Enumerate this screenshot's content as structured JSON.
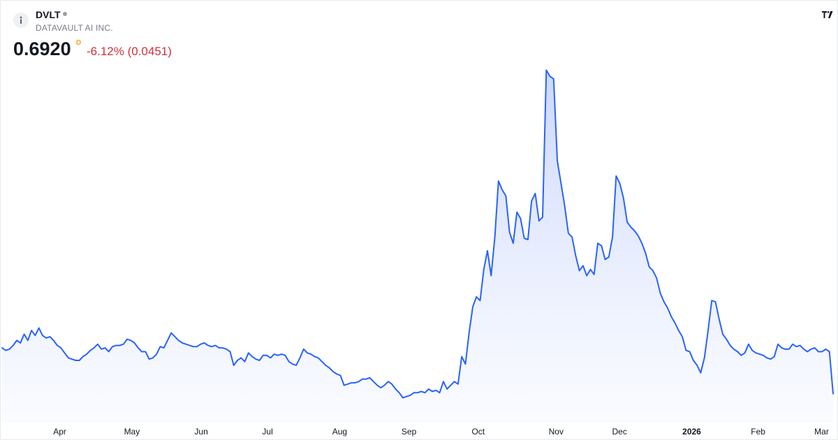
{
  "header": {
    "symbol": "DVLT",
    "company": "DATAVAULT AI INC.",
    "price": "0.6920",
    "interval": "D",
    "change": "-6.12% (0.0451)",
    "logo_icon": "info-icon",
    "brand_icon": "tradingview-logo-icon"
  },
  "colors": {
    "line": "#2962ff",
    "fill_top": "#c9d6fb",
    "fill_bottom": "#f7f9ff",
    "change": "#d0303d",
    "interval": "#f5a623"
  },
  "chart_data": {
    "type": "area",
    "ylim": [
      0.5,
      3.5
    ],
    "xlim": [
      0,
      288
    ],
    "grid": false,
    "x_ticks": [
      {
        "label": "Apr",
        "x": 20,
        "bold": false
      },
      {
        "label": "May",
        "x": 45,
        "bold": false
      },
      {
        "label": "Jun",
        "x": 69,
        "bold": false
      },
      {
        "label": "Jul",
        "x": 92,
        "bold": false
      },
      {
        "label": "Aug",
        "x": 117,
        "bold": false
      },
      {
        "label": "Sep",
        "x": 141,
        "bold": false
      },
      {
        "label": "Oct",
        "x": 165,
        "bold": false
      },
      {
        "label": "Nov",
        "x": 192,
        "bold": false
      },
      {
        "label": "Dec",
        "x": 214,
        "bold": false
      },
      {
        "label": "2026",
        "x": 239,
        "bold": true
      },
      {
        "label": "Feb",
        "x": 262,
        "bold": false
      },
      {
        "label": "Mar",
        "x": 284,
        "bold": false
      }
    ],
    "values": [
      1.06,
      1.04,
      1.05,
      1.08,
      1.12,
      1.1,
      1.17,
      1.12,
      1.2,
      1.16,
      1.22,
      1.16,
      1.14,
      1.15,
      1.12,
      1.08,
      1.06,
      1.02,
      0.98,
      0.97,
      0.96,
      0.96,
      0.99,
      1.01,
      1.04,
      1.06,
      1.09,
      1.05,
      1.06,
      1.03,
      1.07,
      1.08,
      1.08,
      1.09,
      1.13,
      1.12,
      1.1,
      1.06,
      1.03,
      1.03,
      0.97,
      0.98,
      1.01,
      1.07,
      1.06,
      1.12,
      1.18,
      1.15,
      1.12,
      1.1,
      1.09,
      1.08,
      1.07,
      1.07,
      1.09,
      1.1,
      1.08,
      1.07,
      1.08,
      1.06,
      1.06,
      1.05,
      1.03,
      0.92,
      0.96,
      0.98,
      0.95,
      1.02,
      0.99,
      0.97,
      0.96,
      1.0,
      1.0,
      0.98,
      1.01,
      1.0,
      1.01,
      1.0,
      0.95,
      0.93,
      0.92,
      0.98,
      1.05,
      1.02,
      1.01,
      0.99,
      0.98,
      0.95,
      0.92,
      0.9,
      0.87,
      0.85,
      0.84,
      0.76,
      0.77,
      0.78,
      0.78,
      0.79,
      0.81,
      0.81,
      0.82,
      0.79,
      0.76,
      0.74,
      0.76,
      0.79,
      0.77,
      0.73,
      0.7,
      0.66,
      0.67,
      0.68,
      0.7,
      0.7,
      0.71,
      0.7,
      0.73,
      0.71,
      0.72,
      0.7,
      0.79,
      0.73,
      0.76,
      0.79,
      0.77,
      0.99,
      0.93,
      1.18,
      1.39,
      1.47,
      1.44,
      1.69,
      1.84,
      1.64,
      1.95,
      2.4,
      2.33,
      2.28,
      1.99,
      1.9,
      2.15,
      2.1,
      1.94,
      1.93,
      2.24,
      2.3,
      2.08,
      2.11,
      3.29,
      3.24,
      3.22,
      2.56,
      2.38,
      2.2,
      1.98,
      1.95,
      1.8,
      1.68,
      1.72,
      1.64,
      1.69,
      1.65,
      1.9,
      1.88,
      1.77,
      1.79,
      1.95,
      2.44,
      2.38,
      2.26,
      2.07,
      2.03,
      2.0,
      1.96,
      1.9,
      1.82,
      1.71,
      1.68,
      1.62,
      1.5,
      1.43,
      1.38,
      1.31,
      1.26,
      1.2,
      1.15,
      1.04,
      1.03,
      0.96,
      0.92,
      0.86,
      0.98,
      1.2,
      1.44,
      1.43,
      1.29,
      1.17,
      1.13,
      1.08,
      1.05,
      1.03,
      1.0,
      1.02,
      1.09,
      1.04,
      1.02,
      1.01,
      1.0,
      0.98,
      0.97,
      0.99,
      1.09,
      1.06,
      1.05,
      1.05,
      1.09,
      1.07,
      1.08,
      1.05,
      1.03,
      1.05,
      1.06,
      1.03,
      1.03,
      1.05,
      1.03
    ],
    "last_value": 0.692
  }
}
